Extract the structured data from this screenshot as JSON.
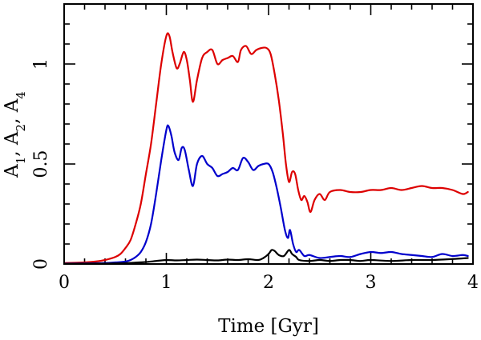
{
  "chart_data": {
    "type": "line",
    "title": "",
    "xlabel": "Time [Gyr]",
    "ylabel": {
      "parts": [
        {
          "text": "A",
          "sub": "1"
        },
        {
          "text": ", A",
          "sub": "2"
        },
        {
          "text": ", A",
          "sub": "4"
        }
      ]
    },
    "xlim": [
      0,
      4
    ],
    "ylim": [
      0,
      1.3
    ],
    "xticks": [
      0,
      1,
      2,
      3,
      4
    ],
    "xtick_labels": [
      "0",
      "1",
      "2",
      "3",
      "4"
    ],
    "yticks": [
      0,
      0.5,
      1
    ],
    "ytick_labels": [
      "0",
      "0.5",
      "1"
    ],
    "x_minor_step": 0.2,
    "y_minor_step": 0.1,
    "grid": false,
    "legend": "none",
    "series": [
      {
        "color": "#dd0000",
        "points": [
          [
            0.0,
            0.005
          ],
          [
            0.1,
            0.006
          ],
          [
            0.2,
            0.008
          ],
          [
            0.3,
            0.012
          ],
          [
            0.4,
            0.02
          ],
          [
            0.5,
            0.035
          ],
          [
            0.55,
            0.05
          ],
          [
            0.6,
            0.08
          ],
          [
            0.65,
            0.12
          ],
          [
            0.7,
            0.2
          ],
          [
            0.75,
            0.3
          ],
          [
            0.8,
            0.45
          ],
          [
            0.85,
            0.6
          ],
          [
            0.9,
            0.8
          ],
          [
            0.95,
            1.0
          ],
          [
            1.0,
            1.14
          ],
          [
            1.03,
            1.14
          ],
          [
            1.06,
            1.06
          ],
          [
            1.1,
            0.98
          ],
          [
            1.13,
            1.0
          ],
          [
            1.17,
            1.06
          ],
          [
            1.2,
            1.02
          ],
          [
            1.23,
            0.92
          ],
          [
            1.26,
            0.81
          ],
          [
            1.3,
            0.92
          ],
          [
            1.35,
            1.03
          ],
          [
            1.4,
            1.06
          ],
          [
            1.45,
            1.07
          ],
          [
            1.5,
            1.0
          ],
          [
            1.55,
            1.02
          ],
          [
            1.6,
            1.03
          ],
          [
            1.65,
            1.04
          ],
          [
            1.7,
            1.01
          ],
          [
            1.73,
            1.07
          ],
          [
            1.78,
            1.09
          ],
          [
            1.83,
            1.05
          ],
          [
            1.88,
            1.07
          ],
          [
            1.93,
            1.08
          ],
          [
            1.98,
            1.08
          ],
          [
            2.02,
            1.05
          ],
          [
            2.06,
            0.95
          ],
          [
            2.1,
            0.82
          ],
          [
            2.14,
            0.65
          ],
          [
            2.17,
            0.5
          ],
          [
            2.2,
            0.41
          ],
          [
            2.23,
            0.46
          ],
          [
            2.26,
            0.45
          ],
          [
            2.29,
            0.37
          ],
          [
            2.32,
            0.32
          ],
          [
            2.35,
            0.34
          ],
          [
            2.38,
            0.31
          ],
          [
            2.41,
            0.26
          ],
          [
            2.45,
            0.32
          ],
          [
            2.5,
            0.35
          ],
          [
            2.55,
            0.32
          ],
          [
            2.6,
            0.36
          ],
          [
            2.7,
            0.37
          ],
          [
            2.8,
            0.36
          ],
          [
            2.9,
            0.36
          ],
          [
            3.0,
            0.37
          ],
          [
            3.1,
            0.37
          ],
          [
            3.2,
            0.38
          ],
          [
            3.3,
            0.37
          ],
          [
            3.4,
            0.38
          ],
          [
            3.5,
            0.39
          ],
          [
            3.6,
            0.38
          ],
          [
            3.7,
            0.38
          ],
          [
            3.8,
            0.37
          ],
          [
            3.9,
            0.35
          ],
          [
            3.95,
            0.36
          ]
        ]
      },
      {
        "color": "#0000cc",
        "points": [
          [
            0.0,
            0.002
          ],
          [
            0.2,
            0.003
          ],
          [
            0.4,
            0.005
          ],
          [
            0.5,
            0.008
          ],
          [
            0.6,
            0.012
          ],
          [
            0.65,
            0.02
          ],
          [
            0.7,
            0.035
          ],
          [
            0.75,
            0.06
          ],
          [
            0.8,
            0.11
          ],
          [
            0.85,
            0.2
          ],
          [
            0.9,
            0.35
          ],
          [
            0.95,
            0.52
          ],
          [
            1.0,
            0.67
          ],
          [
            1.02,
            0.69
          ],
          [
            1.05,
            0.64
          ],
          [
            1.08,
            0.56
          ],
          [
            1.12,
            0.52
          ],
          [
            1.15,
            0.58
          ],
          [
            1.18,
            0.57
          ],
          [
            1.22,
            0.47
          ],
          [
            1.26,
            0.39
          ],
          [
            1.3,
            0.5
          ],
          [
            1.35,
            0.54
          ],
          [
            1.4,
            0.5
          ],
          [
            1.45,
            0.48
          ],
          [
            1.5,
            0.44
          ],
          [
            1.55,
            0.45
          ],
          [
            1.6,
            0.46
          ],
          [
            1.65,
            0.48
          ],
          [
            1.7,
            0.47
          ],
          [
            1.75,
            0.53
          ],
          [
            1.8,
            0.51
          ],
          [
            1.85,
            0.47
          ],
          [
            1.9,
            0.49
          ],
          [
            1.95,
            0.5
          ],
          [
            2.0,
            0.5
          ],
          [
            2.04,
            0.46
          ],
          [
            2.08,
            0.38
          ],
          [
            2.12,
            0.28
          ],
          [
            2.16,
            0.17
          ],
          [
            2.19,
            0.13
          ],
          [
            2.21,
            0.17
          ],
          [
            2.24,
            0.1
          ],
          [
            2.27,
            0.06
          ],
          [
            2.3,
            0.07
          ],
          [
            2.35,
            0.04
          ],
          [
            2.4,
            0.045
          ],
          [
            2.5,
            0.03
          ],
          [
            2.6,
            0.035
          ],
          [
            2.7,
            0.04
          ],
          [
            2.8,
            0.035
          ],
          [
            2.9,
            0.05
          ],
          [
            3.0,
            0.06
          ],
          [
            3.1,
            0.055
          ],
          [
            3.2,
            0.06
          ],
          [
            3.3,
            0.05
          ],
          [
            3.4,
            0.045
          ],
          [
            3.5,
            0.04
          ],
          [
            3.6,
            0.035
          ],
          [
            3.7,
            0.05
          ],
          [
            3.8,
            0.04
          ],
          [
            3.9,
            0.045
          ],
          [
            3.95,
            0.04
          ]
        ]
      },
      {
        "color": "#000000",
        "points": [
          [
            0.0,
            0.001
          ],
          [
            0.4,
            0.002
          ],
          [
            0.6,
            0.004
          ],
          [
            0.7,
            0.007
          ],
          [
            0.8,
            0.01
          ],
          [
            0.9,
            0.015
          ],
          [
            1.0,
            0.02
          ],
          [
            1.1,
            0.018
          ],
          [
            1.2,
            0.02
          ],
          [
            1.3,
            0.022
          ],
          [
            1.4,
            0.02
          ],
          [
            1.5,
            0.018
          ],
          [
            1.6,
            0.022
          ],
          [
            1.7,
            0.02
          ],
          [
            1.8,
            0.024
          ],
          [
            1.9,
            0.02
          ],
          [
            1.95,
            0.03
          ],
          [
            2.0,
            0.05
          ],
          [
            2.03,
            0.07
          ],
          [
            2.06,
            0.065
          ],
          [
            2.1,
            0.045
          ],
          [
            2.15,
            0.04
          ],
          [
            2.2,
            0.07
          ],
          [
            2.23,
            0.05
          ],
          [
            2.27,
            0.035
          ],
          [
            2.3,
            0.02
          ],
          [
            2.4,
            0.015
          ],
          [
            2.5,
            0.02
          ],
          [
            2.6,
            0.015
          ],
          [
            2.7,
            0.02
          ],
          [
            2.8,
            0.02
          ],
          [
            2.9,
            0.015
          ],
          [
            3.0,
            0.02
          ],
          [
            3.2,
            0.015
          ],
          [
            3.4,
            0.02
          ],
          [
            3.6,
            0.02
          ],
          [
            3.8,
            0.025
          ],
          [
            3.95,
            0.03
          ]
        ]
      }
    ]
  }
}
